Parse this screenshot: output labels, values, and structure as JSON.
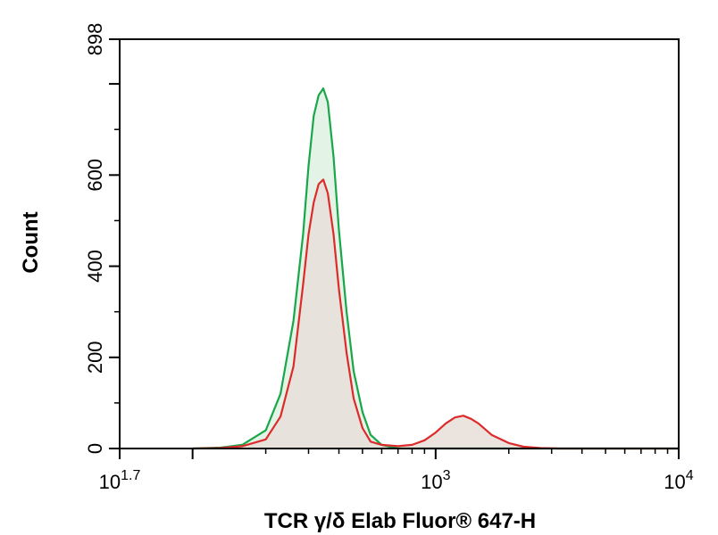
{
  "colors": {
    "green_line": "#1aa64a",
    "green_fill": "#e3f3e6",
    "red_line": "#dd2b2b",
    "red_fill": "#f6dcd7",
    "overlap_fill": "#e7ded8",
    "axis": "#000000"
  },
  "chart_data": {
    "type": "area",
    "title": "",
    "xlabel": "TCR γ/δ Elab Fluor® 647-H",
    "ylabel": "Count",
    "x_scale": "log",
    "xlim": [
      50.12,
      10000
    ],
    "ylim": [
      0,
      898
    ],
    "x_ticks": [
      {
        "value": 50.12,
        "base": "10",
        "exp": "1.7"
      },
      {
        "value": 1000,
        "base": "10",
        "exp": "3"
      },
      {
        "value": 10000,
        "base": "10",
        "exp": "4"
      }
    ],
    "y_ticks": [
      {
        "value": 0,
        "label": "0"
      },
      {
        "value": 200,
        "label": "200"
      },
      {
        "value": 400,
        "label": "400"
      },
      {
        "value": 600,
        "label": "600"
      },
      {
        "value": 898,
        "label": "898"
      }
    ],
    "series": [
      {
        "color": "#1aa64a",
        "fill": "#e3f3e6",
        "x": [
          100,
          130,
          160,
          200,
          230,
          260,
          285,
          300,
          315,
          330,
          345,
          360,
          380,
          400,
          430,
          460,
          500,
          540,
          600,
          700,
          800,
          1000,
          2000,
          5000,
          10000
        ],
        "y": [
          0,
          2,
          8,
          40,
          120,
          280,
          470,
          620,
          730,
          775,
          790,
          760,
          640,
          480,
          300,
          170,
          80,
          30,
          8,
          0,
          0,
          0,
          0,
          0,
          0
        ]
      },
      {
        "color": "#dd2b2b",
        "fill": "#f6dcd7",
        "x": [
          100,
          130,
          160,
          200,
          230,
          260,
          285,
          300,
          315,
          330,
          345,
          360,
          380,
          400,
          430,
          460,
          500,
          540,
          600,
          700,
          800,
          900,
          1000,
          1100,
          1200,
          1300,
          1400,
          1500,
          1700,
          2000,
          2300,
          2700,
          3200,
          4000,
          10000
        ],
        "y": [
          0,
          1,
          5,
          20,
          70,
          180,
          360,
          470,
          540,
          580,
          590,
          560,
          470,
          350,
          210,
          110,
          45,
          15,
          8,
          5,
          8,
          18,
          35,
          55,
          68,
          72,
          65,
          55,
          30,
          12,
          4,
          1,
          0,
          0,
          0
        ]
      }
    ]
  }
}
